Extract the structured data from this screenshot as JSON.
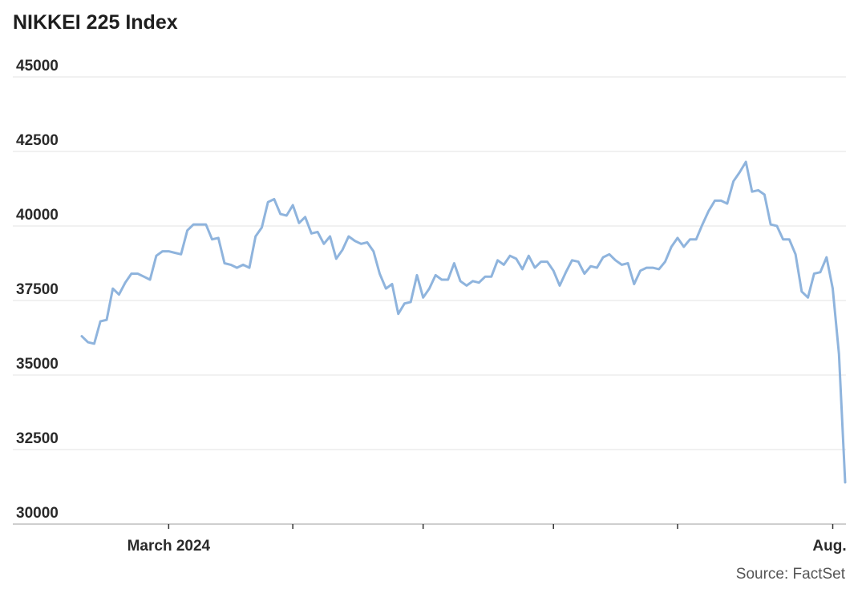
{
  "chart_data": {
    "type": "line",
    "title": "NIKKEI 225 Index",
    "source": "Source: FactSet",
    "ylim": [
      30000,
      45000
    ],
    "yticks": [
      30000,
      32500,
      35000,
      37500,
      40000,
      42500,
      45000
    ],
    "xticks": [
      {
        "index": 14,
        "label": "March 2024"
      },
      {
        "index": 34,
        "label": ""
      },
      {
        "index": 55,
        "label": ""
      },
      {
        "index": 76,
        "label": ""
      },
      {
        "index": 96,
        "label": ""
      },
      {
        "index": 121,
        "label": "Aug."
      }
    ],
    "grid": true,
    "legend": "none",
    "line_color": "#8fb4dd",
    "series": [
      {
        "values": [
          36300,
          36100,
          36050,
          36800,
          36850,
          37900,
          37700,
          38100,
          38400,
          38400,
          38300,
          38200,
          39000,
          39150,
          39150,
          39100,
          39050,
          39850,
          40050,
          40050,
          40050,
          39550,
          39600,
          38750,
          38700,
          38600,
          38700,
          38600,
          39650,
          39950,
          40800,
          40900,
          40400,
          40350,
          40700,
          40100,
          40300,
          39750,
          39800,
          39400,
          39650,
          38900,
          39200,
          39650,
          39500,
          39400,
          39450,
          39150,
          38400,
          37900,
          38050,
          37050,
          37400,
          37450,
          38350,
          37600,
          37900,
          38350,
          38200,
          38200,
          38750,
          38150,
          38000,
          38150,
          38100,
          38300,
          38300,
          38850,
          38700,
          39000,
          38900,
          38550,
          39000,
          38600,
          38800,
          38800,
          38500,
          38000,
          38450,
          38850,
          38800,
          38400,
          38650,
          38600,
          38950,
          39050,
          38850,
          38700,
          38750,
          38050,
          38500,
          38600,
          38600,
          38550,
          38800,
          39300,
          39600,
          39300,
          39550,
          39550,
          40050,
          40500,
          40850,
          40850,
          40750,
          41500,
          41800,
          42150,
          41150,
          41200,
          41050,
          40050,
          40000,
          39550,
          39550,
          39050,
          37800,
          37600,
          38400,
          38450,
          38950,
          37900,
          35700,
          31400
        ]
      }
    ]
  }
}
